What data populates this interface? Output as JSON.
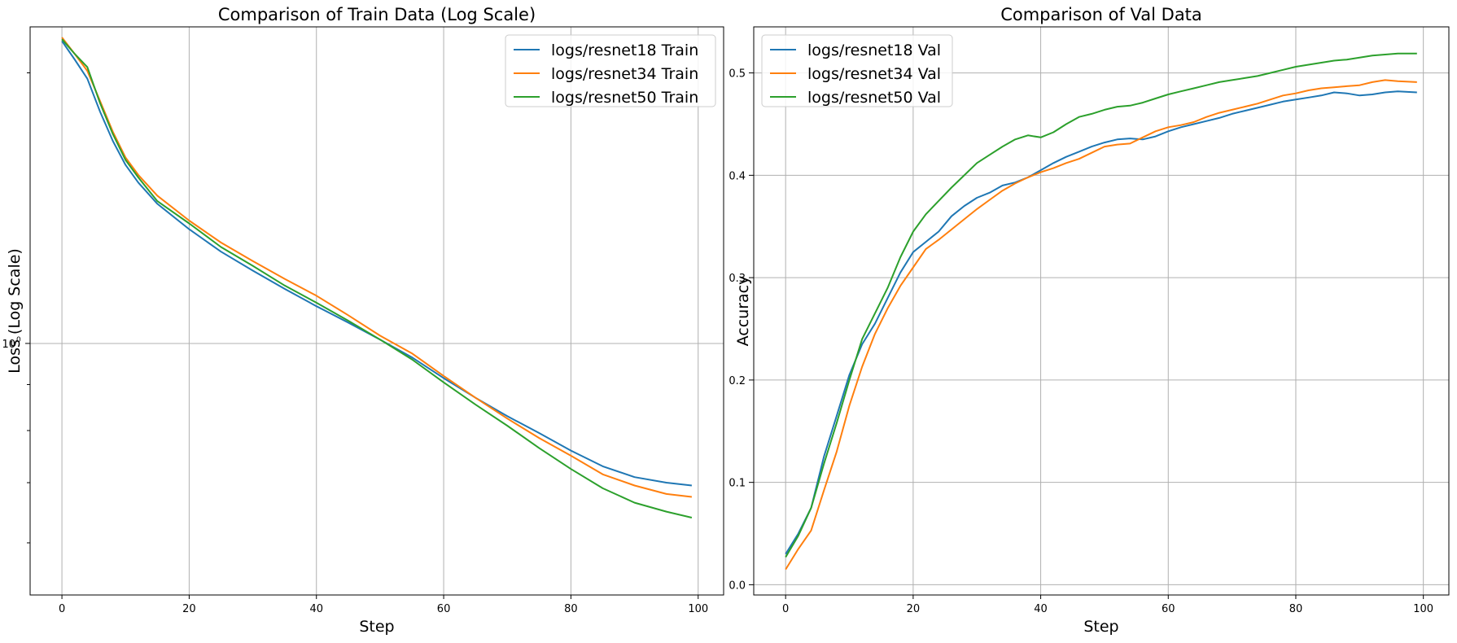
{
  "colors": {
    "resnet18": "#1f77b4",
    "resnet34": "#ff7f0e",
    "resnet50": "#2ca02c",
    "grid": "#b0b0b0"
  },
  "chart_data": [
    {
      "type": "line",
      "title": "Comparison of Train Data (Log Scale)",
      "xlabel": "Step",
      "ylabel": "Loss (Log Scale)",
      "yscale": "log",
      "xlim": [
        -5,
        104
      ],
      "ylim": [
        0.525,
        2.25
      ],
      "xticks": [
        0,
        20,
        40,
        60,
        80,
        100
      ],
      "xtick_labels": [
        "0",
        "20",
        "40",
        "60",
        "80",
        "100"
      ],
      "yticks": [
        1
      ],
      "ytick_labels": [
        "10",
        "0"
      ],
      "grid": true,
      "legend": "top-right",
      "series": [
        {
          "name": "logs/resnet18 Train",
          "color": "resnet18",
          "points": [
            [
              0,
              2.17
            ],
            [
              2,
              2.07
            ],
            [
              4,
              1.97
            ],
            [
              6,
              1.81
            ],
            [
              8,
              1.68
            ],
            [
              10,
              1.58
            ],
            [
              12,
              1.51
            ],
            [
              15,
              1.43
            ],
            [
              20,
              1.34
            ],
            [
              25,
              1.265
            ],
            [
              30,
              1.205
            ],
            [
              35,
              1.15
            ],
            [
              40,
              1.1
            ],
            [
              45,
              1.055
            ],
            [
              50,
              1.01
            ],
            [
              55,
              0.965
            ],
            [
              60,
              0.915
            ],
            [
              65,
              0.87
            ],
            [
              70,
              0.83
            ],
            [
              75,
              0.795
            ],
            [
              80,
              0.76
            ],
            [
              85,
              0.73
            ],
            [
              90,
              0.71
            ],
            [
              95,
              0.7
            ],
            [
              99,
              0.695
            ]
          ]
        },
        {
          "name": "logs/resnet34 Train",
          "color": "resnet34",
          "points": [
            [
              0,
              2.19
            ],
            [
              2,
              2.1
            ],
            [
              4,
              2.01
            ],
            [
              6,
              1.86
            ],
            [
              8,
              1.72
            ],
            [
              10,
              1.61
            ],
            [
              12,
              1.54
            ],
            [
              15,
              1.46
            ],
            [
              20,
              1.37
            ],
            [
              25,
              1.295
            ],
            [
              30,
              1.235
            ],
            [
              35,
              1.18
            ],
            [
              40,
              1.13
            ],
            [
              45,
              1.075
            ],
            [
              50,
              1.02
            ],
            [
              55,
              0.975
            ],
            [
              60,
              0.92
            ],
            [
              65,
              0.87
            ],
            [
              70,
              0.825
            ],
            [
              75,
              0.785
            ],
            [
              80,
              0.75
            ],
            [
              85,
              0.715
            ],
            [
              90,
              0.695
            ],
            [
              95,
              0.68
            ],
            [
              99,
              0.675
            ]
          ]
        },
        {
          "name": "logs/resnet50 Train",
          "color": "resnet50",
          "points": [
            [
              0,
              2.18
            ],
            [
              2,
              2.1
            ],
            [
              4,
              2.03
            ],
            [
              6,
              1.85
            ],
            [
              8,
              1.71
            ],
            [
              10,
              1.6
            ],
            [
              12,
              1.53
            ],
            [
              15,
              1.44
            ],
            [
              20,
              1.36
            ],
            [
              25,
              1.28
            ],
            [
              30,
              1.22
            ],
            [
              35,
              1.16
            ],
            [
              40,
              1.11
            ],
            [
              45,
              1.06
            ],
            [
              50,
              1.01
            ],
            [
              55,
              0.96
            ],
            [
              60,
              0.905
            ],
            [
              65,
              0.855
            ],
            [
              70,
              0.81
            ],
            [
              75,
              0.765
            ],
            [
              80,
              0.725
            ],
            [
              85,
              0.69
            ],
            [
              90,
              0.665
            ],
            [
              95,
              0.65
            ],
            [
              99,
              0.64
            ]
          ]
        }
      ]
    },
    {
      "type": "line",
      "title": "Comparison of Val Data",
      "xlabel": "Step",
      "ylabel": "Accuracy",
      "xlim": [
        -5,
        104
      ],
      "ylim": [
        -0.01,
        0.545
      ],
      "xticks": [
        0,
        20,
        40,
        60,
        80,
        100
      ],
      "xtick_labels": [
        "0",
        "20",
        "40",
        "60",
        "80",
        "100"
      ],
      "yticks": [
        0.0,
        0.1,
        0.2,
        0.3,
        0.4,
        0.5
      ],
      "ytick_labels": [
        "0.0",
        "0.1",
        "0.2",
        "0.3",
        "0.4",
        "0.5"
      ],
      "grid": true,
      "legend": "top-left",
      "series": [
        {
          "name": "logs/resnet18 Val",
          "color": "resnet18",
          "points": [
            [
              0,
              0.03
            ],
            [
              2,
              0.05
            ],
            [
              4,
              0.075
            ],
            [
              6,
              0.125
            ],
            [
              8,
              0.165
            ],
            [
              10,
              0.205
            ],
            [
              12,
              0.235
            ],
            [
              14,
              0.255
            ],
            [
              16,
              0.28
            ],
            [
              18,
              0.305
            ],
            [
              20,
              0.325
            ],
            [
              22,
              0.335
            ],
            [
              24,
              0.345
            ],
            [
              26,
              0.36
            ],
            [
              28,
              0.37
            ],
            [
              30,
              0.378
            ],
            [
              32,
              0.383
            ],
            [
              34,
              0.39
            ],
            [
              36,
              0.393
            ],
            [
              38,
              0.398
            ],
            [
              40,
              0.405
            ],
            [
              42,
              0.412
            ],
            [
              44,
              0.418
            ],
            [
              46,
              0.423
            ],
            [
              48,
              0.428
            ],
            [
              50,
              0.432
            ],
            [
              52,
              0.435
            ],
            [
              54,
              0.436
            ],
            [
              56,
              0.435
            ],
            [
              58,
              0.438
            ],
            [
              60,
              0.443
            ],
            [
              62,
              0.447
            ],
            [
              64,
              0.45
            ],
            [
              66,
              0.453
            ],
            [
              68,
              0.456
            ],
            [
              70,
              0.46
            ],
            [
              72,
              0.463
            ],
            [
              74,
              0.466
            ],
            [
              76,
              0.469
            ],
            [
              78,
              0.472
            ],
            [
              80,
              0.474
            ],
            [
              82,
              0.476
            ],
            [
              84,
              0.478
            ],
            [
              86,
              0.481
            ],
            [
              88,
              0.48
            ],
            [
              90,
              0.478
            ],
            [
              92,
              0.479
            ],
            [
              94,
              0.481
            ],
            [
              96,
              0.482
            ],
            [
              99,
              0.481
            ]
          ]
        },
        {
          "name": "logs/resnet34 Val",
          "color": "resnet34",
          "points": [
            [
              0,
              0.015
            ],
            [
              2,
              0.035
            ],
            [
              4,
              0.053
            ],
            [
              6,
              0.092
            ],
            [
              8,
              0.13
            ],
            [
              10,
              0.175
            ],
            [
              12,
              0.213
            ],
            [
              14,
              0.245
            ],
            [
              16,
              0.27
            ],
            [
              18,
              0.292
            ],
            [
              20,
              0.31
            ],
            [
              22,
              0.328
            ],
            [
              24,
              0.337
            ],
            [
              26,
              0.347
            ],
            [
              28,
              0.357
            ],
            [
              30,
              0.367
            ],
            [
              32,
              0.376
            ],
            [
              34,
              0.385
            ],
            [
              36,
              0.392
            ],
            [
              38,
              0.398
            ],
            [
              40,
              0.403
            ],
            [
              42,
              0.407
            ],
            [
              44,
              0.412
            ],
            [
              46,
              0.416
            ],
            [
              48,
              0.422
            ],
            [
              50,
              0.428
            ],
            [
              52,
              0.43
            ],
            [
              54,
              0.431
            ],
            [
              56,
              0.437
            ],
            [
              58,
              0.443
            ],
            [
              60,
              0.447
            ],
            [
              62,
              0.449
            ],
            [
              64,
              0.452
            ],
            [
              66,
              0.457
            ],
            [
              68,
              0.461
            ],
            [
              70,
              0.464
            ],
            [
              72,
              0.467
            ],
            [
              74,
              0.47
            ],
            [
              76,
              0.474
            ],
            [
              78,
              0.478
            ],
            [
              80,
              0.48
            ],
            [
              82,
              0.483
            ],
            [
              84,
              0.485
            ],
            [
              86,
              0.486
            ],
            [
              88,
              0.487
            ],
            [
              90,
              0.488
            ],
            [
              92,
              0.491
            ],
            [
              94,
              0.493
            ],
            [
              96,
              0.492
            ],
            [
              99,
              0.491
            ]
          ]
        },
        {
          "name": "logs/resnet50 Val",
          "color": "resnet50",
          "points": [
            [
              0,
              0.027
            ],
            [
              2,
              0.048
            ],
            [
              4,
              0.075
            ],
            [
              6,
              0.118
            ],
            [
              8,
              0.158
            ],
            [
              10,
              0.2
            ],
            [
              12,
              0.24
            ],
            [
              14,
              0.265
            ],
            [
              16,
              0.29
            ],
            [
              18,
              0.32
            ],
            [
              20,
              0.345
            ],
            [
              22,
              0.362
            ],
            [
              24,
              0.375
            ],
            [
              26,
              0.388
            ],
            [
              28,
              0.4
            ],
            [
              30,
              0.412
            ],
            [
              32,
              0.42
            ],
            [
              34,
              0.428
            ],
            [
              36,
              0.435
            ],
            [
              38,
              0.439
            ],
            [
              40,
              0.437
            ],
            [
              42,
              0.442
            ],
            [
              44,
              0.45
            ],
            [
              46,
              0.457
            ],
            [
              48,
              0.46
            ],
            [
              50,
              0.464
            ],
            [
              52,
              0.467
            ],
            [
              54,
              0.468
            ],
            [
              56,
              0.471
            ],
            [
              58,
              0.475
            ],
            [
              60,
              0.479
            ],
            [
              62,
              0.482
            ],
            [
              64,
              0.485
            ],
            [
              66,
              0.488
            ],
            [
              68,
              0.491
            ],
            [
              70,
              0.493
            ],
            [
              72,
              0.495
            ],
            [
              74,
              0.497
            ],
            [
              76,
              0.5
            ],
            [
              78,
              0.503
            ],
            [
              80,
              0.506
            ],
            [
              82,
              0.508
            ],
            [
              84,
              0.51
            ],
            [
              86,
              0.512
            ],
            [
              88,
              0.513
            ],
            [
              90,
              0.515
            ],
            [
              92,
              0.517
            ],
            [
              94,
              0.518
            ],
            [
              96,
              0.519
            ],
            [
              99,
              0.519
            ]
          ]
        }
      ]
    }
  ]
}
